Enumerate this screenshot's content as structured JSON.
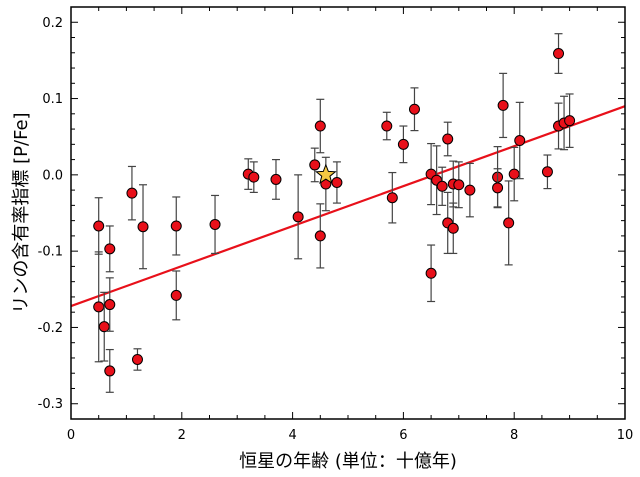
{
  "chart_data": {
    "type": "scatter",
    "title": "",
    "xlabel": "恒星の年齢 (単位：十億年)",
    "ylabel": "リンの含有率指標 [P/Fe]",
    "xlim": [
      0,
      10
    ],
    "ylim": [
      -0.32,
      0.22
    ],
    "x_ticks": [
      0,
      2,
      4,
      6,
      8,
      10
    ],
    "y_ticks": [
      -0.3,
      -0.2,
      -0.1,
      0.0,
      0.1,
      0.2
    ],
    "x_tick_labels": [
      "0",
      "2",
      "4",
      "6",
      "8",
      "10"
    ],
    "y_tick_labels": [
      "-0.3",
      "-0.2",
      "-0.1",
      "0.0",
      "0.1",
      "0.2"
    ],
    "grid": false,
    "legend": "none",
    "colors": {
      "points": "#e8101a",
      "fit_line": "#e8101a",
      "sun": "#f5c842",
      "error_bars": "#444444"
    },
    "points": [
      {
        "x": 0.5,
        "y": -0.067,
        "yerr": 0.037
      },
      {
        "x": 0.5,
        "y": -0.173,
        "yerr": 0.072
      },
      {
        "x": 0.6,
        "y": -0.199,
        "yerr": 0.045
      },
      {
        "x": 0.7,
        "y": -0.097,
        "yerr": 0.03
      },
      {
        "x": 0.7,
        "y": -0.17,
        "yerr": 0.035
      },
      {
        "x": 0.7,
        "y": -0.257,
        "yerr": 0.028
      },
      {
        "x": 1.1,
        "y": -0.024,
        "yerr": 0.035
      },
      {
        "x": 1.2,
        "y": -0.242,
        "yerr": 0.014
      },
      {
        "x": 1.3,
        "y": -0.068,
        "yerr": 0.055
      },
      {
        "x": 1.9,
        "y": -0.067,
        "yerr": 0.038
      },
      {
        "x": 1.9,
        "y": -0.158,
        "yerr": 0.032
      },
      {
        "x": 2.6,
        "y": -0.065,
        "yerr": 0.038
      },
      {
        "x": 3.2,
        "y": 0.001,
        "yerr": 0.02
      },
      {
        "x": 3.3,
        "y": -0.003,
        "yerr": 0.02
      },
      {
        "x": 3.7,
        "y": -0.006,
        "yerr": 0.026
      },
      {
        "x": 4.1,
        "y": -0.055,
        "yerr": 0.055
      },
      {
        "x": 4.4,
        "y": 0.013,
        "yerr": 0.022
      },
      {
        "x": 4.5,
        "y": 0.064,
        "yerr": 0.035
      },
      {
        "x": 4.5,
        "y": -0.08,
        "yerr": 0.042
      },
      {
        "x": 4.6,
        "y": -0.012,
        "yerr": 0.035
      },
      {
        "x": 4.8,
        "y": -0.01,
        "yerr": 0.027
      },
      {
        "x": 5.7,
        "y": 0.064,
        "yerr": 0.018
      },
      {
        "x": 5.8,
        "y": -0.03,
        "yerr": 0.033
      },
      {
        "x": 6.0,
        "y": 0.04,
        "yerr": 0.024
      },
      {
        "x": 6.2,
        "y": 0.086,
        "yerr": 0.028
      },
      {
        "x": 6.5,
        "y": 0.001,
        "yerr": 0.04
      },
      {
        "x": 6.5,
        "y": -0.129,
        "yerr": 0.037
      },
      {
        "x": 6.6,
        "y": -0.007,
        "yerr": 0.045
      },
      {
        "x": 6.7,
        "y": -0.015,
        "yerr": 0.025
      },
      {
        "x": 6.8,
        "y": 0.047,
        "yerr": 0.022
      },
      {
        "x": 6.8,
        "y": -0.063,
        "yerr": 0.04
      },
      {
        "x": 6.9,
        "y": -0.012,
        "yerr": 0.03
      },
      {
        "x": 6.9,
        "y": -0.07,
        "yerr": 0.033
      },
      {
        "x": 7.0,
        "y": -0.013,
        "yerr": 0.03
      },
      {
        "x": 7.2,
        "y": -0.02,
        "yerr": 0.035
      },
      {
        "x": 7.7,
        "y": -0.003,
        "yerr": 0.04
      },
      {
        "x": 7.7,
        "y": -0.017,
        "yerr": 0.025
      },
      {
        "x": 7.8,
        "y": 0.091,
        "yerr": 0.042
      },
      {
        "x": 7.9,
        "y": -0.063,
        "yerr": 0.055
      },
      {
        "x": 8.0,
        "y": 0.001,
        "yerr": 0.035
      },
      {
        "x": 8.1,
        "y": 0.045,
        "yerr": 0.05
      },
      {
        "x": 8.6,
        "y": 0.004,
        "yerr": 0.022
      },
      {
        "x": 8.8,
        "y": 0.159,
        "yerr": 0.026
      },
      {
        "x": 8.8,
        "y": 0.064,
        "yerr": 0.03
      },
      {
        "x": 8.9,
        "y": 0.068,
        "yerr": 0.035
      },
      {
        "x": 9.0,
        "y": 0.071,
        "yerr": 0.035
      }
    ],
    "sun": {
      "x": 4.6,
      "y": 0.0
    },
    "fit_line": {
      "x": [
        0,
        10
      ],
      "y": [
        -0.172,
        0.09
      ]
    }
  }
}
